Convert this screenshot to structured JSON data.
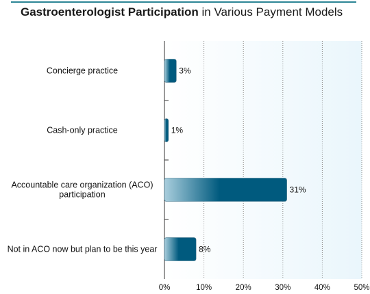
{
  "chart_data": {
    "type": "bar",
    "orientation": "horizontal",
    "title": {
      "bold": "Gastroenterologist Participation",
      "rest": " in Various Payment Models"
    },
    "categories": [
      [
        "Concierge practice"
      ],
      [
        "Cash-only practice"
      ],
      [
        "Accountable care organization (ACO)",
        "participation"
      ],
      [
        "Not in ACO now but plan to be this year"
      ]
    ],
    "values": [
      3,
      1,
      31,
      8
    ],
    "value_labels": [
      "3%",
      "1%",
      "31%",
      "8%"
    ],
    "xlim": [
      0,
      50
    ],
    "xticks": [
      0,
      10,
      20,
      30,
      40,
      50
    ],
    "xtick_labels": [
      "0%",
      "10%",
      "20%",
      "30%",
      "40%",
      "50%"
    ],
    "grid": "vertical-dotted",
    "colors": {
      "bar_dark": "#005a7e",
      "bar_light": "#a9cedd",
      "plot_bg": "#eaf6fc",
      "accent_rule": "#2c8595"
    }
  }
}
